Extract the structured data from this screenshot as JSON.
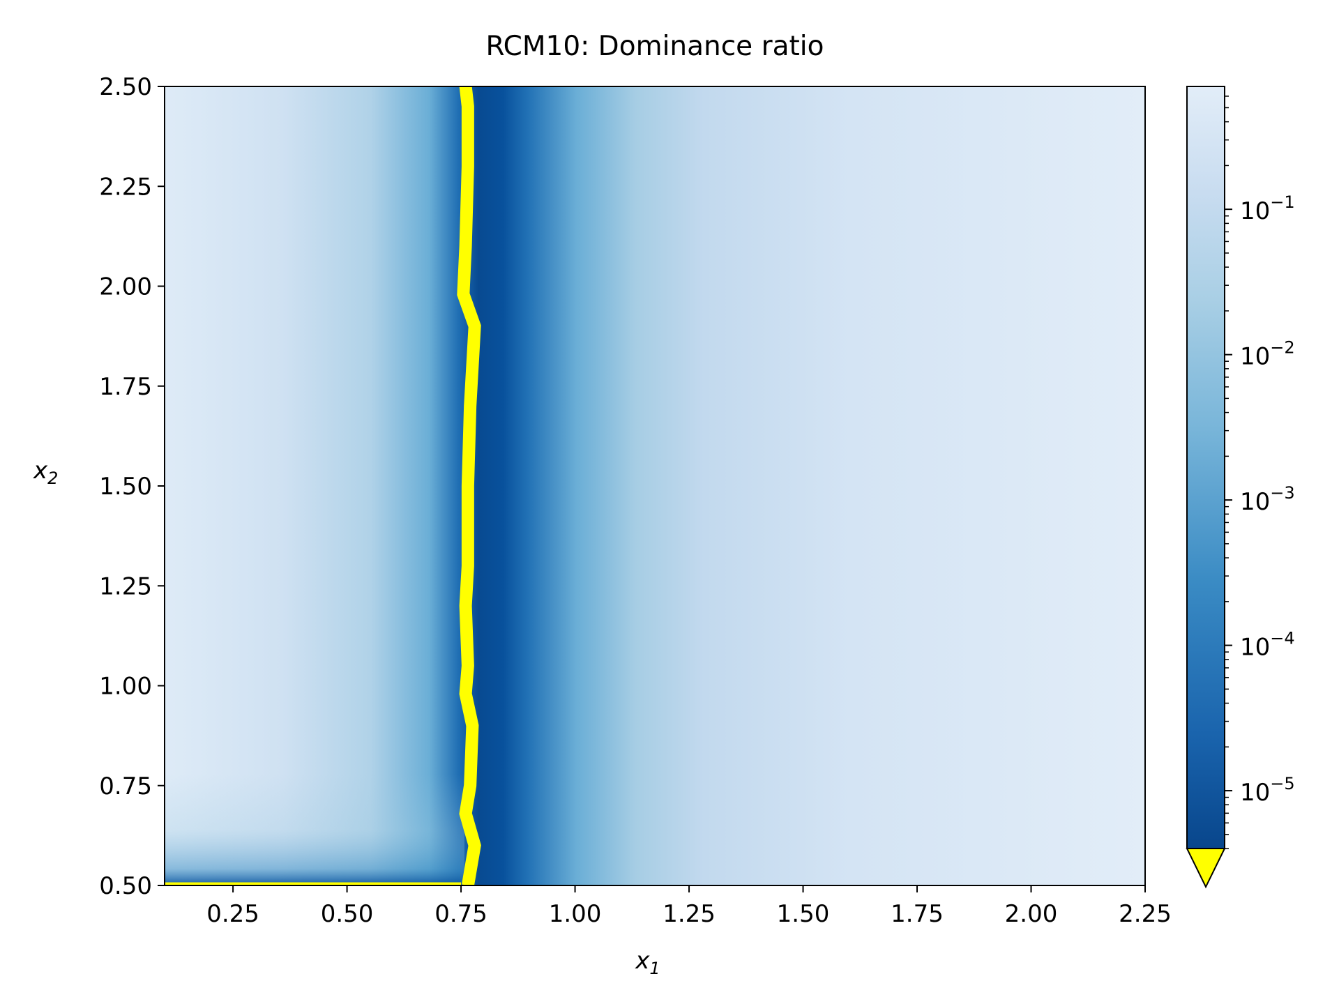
{
  "chart_data": {
    "type": "heatmap",
    "title": "RCM10: Dominance ratio",
    "xlabel": {
      "base": "x",
      "sub": "1"
    },
    "ylabel": {
      "base": "x",
      "sub": "2"
    },
    "xlim": [
      0.1,
      2.25
    ],
    "ylim": [
      0.5,
      2.5
    ],
    "xticks": [
      0.25,
      0.5,
      0.75,
      1.0,
      1.25,
      1.5,
      1.75,
      2.0,
      2.25
    ],
    "xtick_labels": [
      "0.25",
      "0.50",
      "0.75",
      "1.00",
      "1.25",
      "1.50",
      "1.75",
      "2.00",
      "2.25"
    ],
    "yticks": [
      0.5,
      0.75,
      1.0,
      1.25,
      1.5,
      1.75,
      2.0,
      2.25,
      2.5
    ],
    "ytick_labels": [
      "0.50",
      "0.75",
      "1.00",
      "1.25",
      "1.50",
      "1.75",
      "2.00",
      "2.25",
      "2.50"
    ],
    "colorbar": {
      "scale": "log",
      "colormap": "Blues_r",
      "range": [
        4e-06,
        0.7
      ],
      "ticks": [
        1e-05,
        0.0001,
        0.001,
        0.01,
        0.1
      ],
      "tick_labels": [
        {
          "base": "10",
          "exp": "−5"
        },
        {
          "base": "10",
          "exp": "−4"
        },
        {
          "base": "10",
          "exp": "−3"
        },
        {
          "base": "10",
          "exp": "−2"
        },
        {
          "base": "10",
          "exp": "−1"
        }
      ],
      "extend": "min",
      "under_color": "#ffff00"
    },
    "boundary_curve": {
      "color": "#ffff00",
      "description": "cells below colorbar minimum",
      "points": [
        [
          0.76,
          2.5
        ],
        [
          0.765,
          2.45
        ],
        [
          0.765,
          2.3
        ],
        [
          0.76,
          2.1
        ],
        [
          0.755,
          1.98
        ],
        [
          0.78,
          1.9
        ],
        [
          0.77,
          1.7
        ],
        [
          0.765,
          1.5
        ],
        [
          0.765,
          1.3
        ],
        [
          0.76,
          1.2
        ],
        [
          0.765,
          1.05
        ],
        [
          0.76,
          0.98
        ],
        [
          0.775,
          0.9
        ],
        [
          0.77,
          0.75
        ],
        [
          0.76,
          0.68
        ],
        [
          0.78,
          0.6
        ],
        [
          0.765,
          0.5
        ]
      ],
      "bottom_edge": {
        "x": [
          0.1,
          0.75
        ],
        "y": 0.5
      }
    }
  }
}
